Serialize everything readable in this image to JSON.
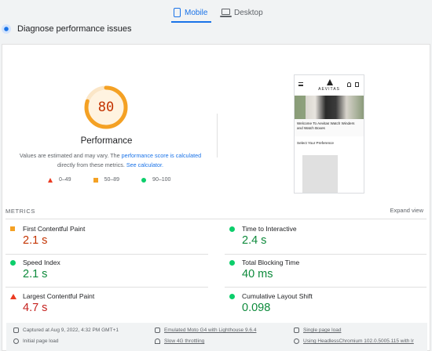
{
  "tabs": [
    {
      "label": "Mobile",
      "icon": "phone-icon",
      "active": true
    },
    {
      "label": "Desktop",
      "icon": "laptop-icon",
      "active": false
    }
  ],
  "diagnose": {
    "title": "Diagnose performance issues"
  },
  "score": {
    "value": "80",
    "fraction": 0.8,
    "label": "Performance",
    "note_prefix": "Values are estimated and may vary. The",
    "note_link1": "performance score is calculated",
    "note_middle": "directly from these metrics.",
    "note_link2": "See calculator."
  },
  "legend": [
    {
      "shape": "triangle",
      "range": "0–49",
      "color": "#eb3b22"
    },
    {
      "shape": "square",
      "range": "50–89",
      "color": "#f4a124"
    },
    {
      "shape": "circle",
      "range": "90–100",
      "color": "#0cce6b"
    }
  ],
  "screenshot": {
    "brand": "AEVITAS",
    "caption": "Welcome To Aevitas Watch Winders and Watch Boxes",
    "pref": "Select Your Preference"
  },
  "metrics": {
    "section_label": "METRICS",
    "expand_label": "Expand view",
    "items": [
      {
        "label": "First Contentful Paint",
        "value": "2.1 s",
        "status": "average"
      },
      {
        "label": "Time to Interactive",
        "value": "2.4 s",
        "status": "good"
      },
      {
        "label": "Speed Index",
        "value": "2.1 s",
        "status": "good"
      },
      {
        "label": "Total Blocking Time",
        "value": "40 ms",
        "status": "good"
      },
      {
        "label": "Largest Contentful Paint",
        "value": "4.7 s",
        "status": "poor"
      },
      {
        "label": "Cumulative Layout Shift",
        "value": "0.098",
        "status": "good"
      }
    ]
  },
  "footer": {
    "captured": "Captured at Aug 9, 2022, 4:32 PM GMT+1",
    "initial": "Initial page load",
    "device": "Emulated Moto G4 with Lighthouse 9.6.4",
    "throttling": "Slow 4G throttling",
    "session": "Single page load",
    "browser": "Using HeadlessChromium 102.0.5005.115 with lr"
  },
  "colors": {
    "accent": "#1a73e8",
    "average": "#f4a124",
    "good": "#0cce6b",
    "poor": "#eb3b22"
  }
}
